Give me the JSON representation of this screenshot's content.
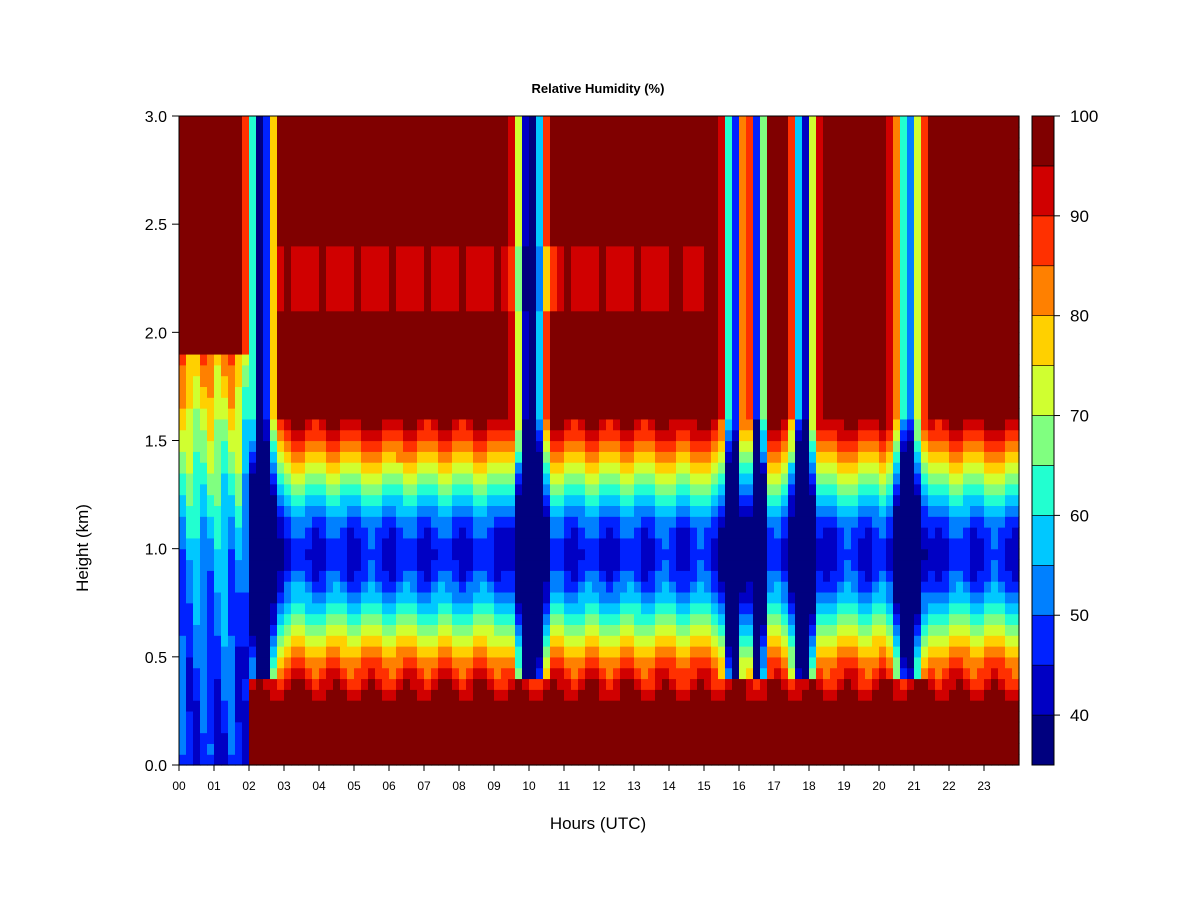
{
  "chart_data": {
    "type": "heatmap",
    "title": "Relative Humidity (%)",
    "xlabel": "Hours (UTC)",
    "ylabel": "Height (km)",
    "xlim": [
      0,
      24
    ],
    "ylim": [
      0.0,
      3.0
    ],
    "x_ticks": [
      "00",
      "01",
      "02",
      "03",
      "04",
      "05",
      "06",
      "07",
      "08",
      "09",
      "10",
      "11",
      "12",
      "13",
      "14",
      "15",
      "16",
      "17",
      "18",
      "19",
      "20",
      "21",
      "22",
      "23"
    ],
    "y_ticks": [
      "0.0",
      "0.5",
      "1.0",
      "1.5",
      "2.0",
      "2.5",
      "3.0"
    ],
    "colorbar": {
      "min": 35,
      "max": 100,
      "levels": [
        35,
        40,
        45,
        50,
        55,
        60,
        65,
        70,
        75,
        80,
        85,
        90,
        95,
        100
      ],
      "tick_labels": [
        "40",
        "50",
        "60",
        "70",
        "80",
        "90",
        "100"
      ],
      "colors": [
        "#00007f",
        "#0000c4",
        "#0022ff",
        "#0080ff",
        "#00c8ff",
        "#22ffd0",
        "#80ff80",
        "#d0ff30",
        "#ffd000",
        "#ff8000",
        "#ff3000",
        "#d00000",
        "#800000"
      ]
    },
    "grid": false
  }
}
